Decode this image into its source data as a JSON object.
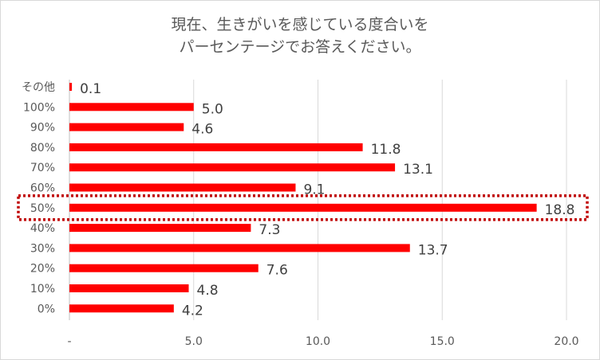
{
  "chart_data": {
    "type": "bar",
    "orientation": "horizontal",
    "title": [
      "現在、生きがいを感じている度合いを",
      "パーセンテージでお答えください。"
    ],
    "categories": [
      "その他",
      "100%",
      "90%",
      "80%",
      "70%",
      "60%",
      "50%",
      "40%",
      "30%",
      "20%",
      "10%",
      "0%"
    ],
    "values": [
      0.1,
      5.0,
      4.6,
      11.8,
      13.1,
      9.1,
      18.8,
      7.3,
      13.7,
      7.6,
      4.8,
      4.2
    ],
    "value_labels": [
      "0.1",
      "5.0",
      "4.6",
      "11.8",
      "13.1",
      "9.1",
      "18.8",
      "7.3",
      "13.7",
      "7.6",
      "4.8",
      "4.2"
    ],
    "xlim": [
      0,
      20
    ],
    "xticks": [
      "-",
      "5.0",
      "10.0",
      "15.0",
      "20.0"
    ],
    "xtick_values": [
      0,
      5,
      10,
      15,
      20
    ],
    "highlight_category": "50%",
    "bar_color": "#ff0000",
    "highlight_color": "#c00000",
    "grid": true
  }
}
